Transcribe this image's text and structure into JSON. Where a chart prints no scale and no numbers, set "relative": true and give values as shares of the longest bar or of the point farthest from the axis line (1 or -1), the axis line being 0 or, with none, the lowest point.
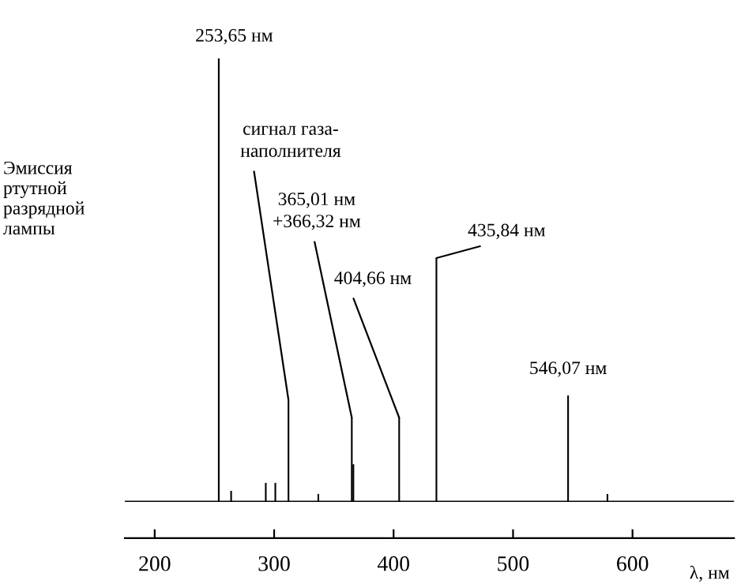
{
  "chart_data": {
    "type": "bar",
    "relative": true,
    "xlabel": "λ, нм",
    "ylabel": "Эмиссия\nртутной\nразрядной\nлампы",
    "x": [
      253.65,
      264,
      293,
      301,
      312,
      337,
      365.01,
      366.32,
      404.66,
      435.84,
      546.07,
      579
    ],
    "values": [
      1,
      0.025,
      0.043,
      0.043,
      0.23,
      0.018,
      0.19,
      0.085,
      0.19,
      0.55,
      0.24,
      0.018
    ],
    "color": "#000000",
    "xlim": [
      175,
      685
    ],
    "xticks": [
      200,
      300,
      400,
      500,
      600
    ],
    "grid": false,
    "annotations": [
      {
        "text": "253,65 нм",
        "x": 253.65,
        "y": 1
      },
      {
        "text": "сигнал газа-\nнаполнителя",
        "x": 312,
        "y": 0.23
      },
      {
        "text": "365,01 нм\n+366,32 нм",
        "x": 365.01,
        "y": 0.19
      },
      {
        "text": "404,66 нм",
        "x": 404.66,
        "y": 0.19
      },
      {
        "text": "435,84 нм",
        "x": 435.84,
        "y": 0.55
      },
      {
        "text": "546,07 нм",
        "x": 546.07,
        "y": 0.24
      }
    ]
  }
}
